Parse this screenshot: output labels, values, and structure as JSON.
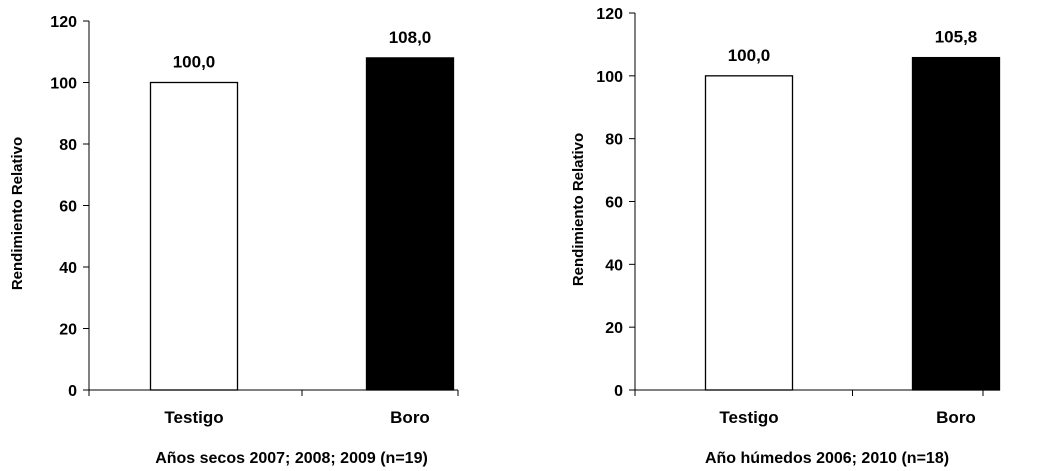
{
  "chart_data": [
    {
      "type": "bar",
      "categories": [
        "Testigo",
        "Boro"
      ],
      "values": [
        100.0,
        108.0
      ],
      "data_labels": [
        "100,0",
        "108,0"
      ],
      "bar_colors": [
        "#ffffff",
        "#000000"
      ],
      "title": "",
      "xlabel": "Años secos 2007; 2008; 2009 (n=19)",
      "ylabel": "Rendimiento Relativo",
      "ylim": [
        0,
        120
      ],
      "yticks": [
        0,
        20,
        40,
        60,
        80,
        100,
        120
      ],
      "grid": false,
      "legend": "none"
    },
    {
      "type": "bar",
      "categories": [
        "Testigo",
        "Boro"
      ],
      "values": [
        100.0,
        105.8
      ],
      "data_labels": [
        "100,0",
        "105,8"
      ],
      "bar_colors": [
        "#ffffff",
        "#000000"
      ],
      "title": "",
      "xlabel": "Año húmedos 2006; 2010 (n=18)",
      "ylabel": "Rendimiento Relativo",
      "ylim": [
        0,
        120
      ],
      "yticks": [
        0,
        20,
        40,
        60,
        80,
        100,
        120
      ],
      "grid": false,
      "legend": "none"
    }
  ]
}
